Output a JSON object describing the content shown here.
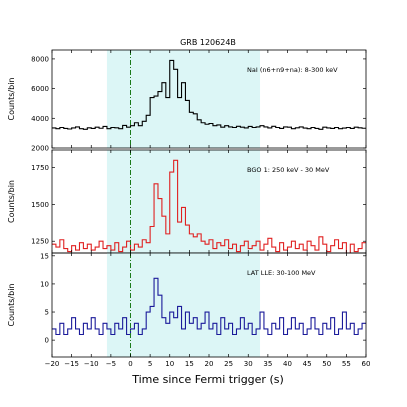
{
  "chart_data": {
    "type": "line",
    "title": "GRB 120624B",
    "xlabel": "Time since Fermi trigger (s)",
    "xlim": [
      -20,
      60
    ],
    "xticks": [
      -20,
      -15,
      -10,
      -5,
      0,
      5,
      10,
      15,
      20,
      25,
      30,
      35,
      40,
      45,
      50,
      55,
      60
    ],
    "xtick_labels": [
      "−20",
      "−15",
      "−10",
      "−5",
      "0",
      "5",
      "10",
      "15",
      "20",
      "25",
      "30",
      "35",
      "40",
      "45",
      "50",
      "55",
      "60"
    ],
    "shaded_interval": [
      -6,
      33
    ],
    "shade_color": "#dcf6f6",
    "trigger_line": {
      "x": 0,
      "color": "#1a7a1a",
      "style": "dash-dot"
    },
    "grid": false,
    "panels": [
      {
        "annotation": "NaI (n6+n9+na): 8-300 keV",
        "ylabel": "Counts/bin",
        "ylim": [
          2000,
          8600
        ],
        "yticks": [
          2000,
          4000,
          6000,
          8000
        ],
        "color": "#000000",
        "series": {
          "x": [
            -20,
            -19,
            -18,
            -17,
            -16,
            -15,
            -14,
            -13,
            -12,
            -11,
            -10,
            -9,
            -8,
            -7,
            -6,
            -5,
            -4,
            -3,
            -2,
            -1,
            0,
            1,
            2,
            3,
            4,
            5,
            6,
            7,
            8,
            9,
            10,
            11,
            12,
            13,
            14,
            15,
            16,
            17,
            18,
            19,
            20,
            21,
            22,
            23,
            24,
            25,
            26,
            27,
            28,
            29,
            30,
            31,
            32,
            33,
            34,
            35,
            36,
            37,
            38,
            39,
            40,
            41,
            42,
            43,
            44,
            45,
            46,
            47,
            48,
            49,
            50,
            51,
            52,
            53,
            54,
            55,
            56,
            57,
            58,
            59
          ],
          "values": [
            3350,
            3300,
            3380,
            3320,
            3280,
            3350,
            3420,
            3300,
            3260,
            3360,
            3320,
            3400,
            3330,
            3450,
            3300,
            3380,
            3360,
            3300,
            3520,
            3400,
            3500,
            3700,
            3500,
            3800,
            4200,
            5400,
            5500,
            5800,
            6400,
            5400,
            7900,
            7300,
            5400,
            6400,
            5200,
            4400,
            4300,
            3900,
            3700,
            3600,
            3650,
            3500,
            3550,
            3400,
            3500,
            3420,
            3380,
            3460,
            3400,
            3350,
            3450,
            3380,
            3420,
            3500,
            3420,
            3350,
            3460,
            3380,
            3320,
            3420,
            3400,
            3300,
            3360,
            3420,
            3340,
            3300,
            3380,
            3320,
            3260,
            3400,
            3350,
            3320,
            3380,
            3300,
            3340,
            3380,
            3320,
            3400,
            3360,
            3330
          ]
        }
      },
      {
        "annotation": "BGO 1: 250 keV - 30 MeV",
        "ylabel": "Counts/bin",
        "ylim": [
          1170,
          1870
        ],
        "yticks": [
          1250,
          1500,
          1750
        ],
        "color": "#e02020",
        "series": {
          "x": [
            -20,
            -19,
            -18,
            -17,
            -16,
            -15,
            -14,
            -13,
            -12,
            -11,
            -10,
            -9,
            -8,
            -7,
            -6,
            -5,
            -4,
            -3,
            -2,
            -1,
            0,
            1,
            2,
            3,
            4,
            5,
            6,
            7,
            8,
            9,
            10,
            11,
            12,
            13,
            14,
            15,
            16,
            17,
            18,
            19,
            20,
            21,
            22,
            23,
            24,
            25,
            26,
            27,
            28,
            29,
            30,
            31,
            32,
            33,
            34,
            35,
            36,
            37,
            38,
            39,
            40,
            41,
            42,
            43,
            44,
            45,
            46,
            47,
            48,
            49,
            50,
            51,
            52,
            53,
            54,
            55,
            56,
            57,
            58,
            59
          ],
          "values": [
            1230,
            1210,
            1260,
            1200,
            1180,
            1220,
            1190,
            1240,
            1200,
            1230,
            1190,
            1210,
            1250,
            1200,
            1220,
            1190,
            1240,
            1180,
            1210,
            1250,
            1190,
            1230,
            1210,
            1260,
            1240,
            1350,
            1640,
            1540,
            1420,
            1300,
            1720,
            1800,
            1380,
            1480,
            1360,
            1300,
            1280,
            1300,
            1250,
            1230,
            1260,
            1200,
            1240,
            1220,
            1260,
            1200,
            1230,
            1180,
            1220,
            1250,
            1200,
            1220,
            1250,
            1190,
            1230,
            1270,
            1210,
            1180,
            1240,
            1190,
            1210,
            1250,
            1200,
            1230,
            1190,
            1250,
            1220,
            1190,
            1280,
            1230,
            1180,
            1220,
            1260,
            1200,
            1240,
            1170,
            1230,
            1180,
            1200,
            1240
          ]
        }
      },
      {
        "annotation": "LAT LLE: 30-100 MeV",
        "ylabel": "Counts/bin",
        "ylim": [
          -3,
          15.5
        ],
        "yticks": [
          0,
          5,
          10,
          15
        ],
        "color": "#1a1a9a",
        "series": {
          "x": [
            -20,
            -19,
            -18,
            -17,
            -16,
            -15,
            -14,
            -13,
            -12,
            -11,
            -10,
            -9,
            -8,
            -7,
            -6,
            -5,
            -4,
            -3,
            -2,
            -1,
            0,
            1,
            2,
            3,
            4,
            5,
            6,
            7,
            8,
            9,
            10,
            11,
            12,
            13,
            14,
            15,
            16,
            17,
            18,
            19,
            20,
            21,
            22,
            23,
            24,
            25,
            26,
            27,
            28,
            29,
            30,
            31,
            32,
            33,
            34,
            35,
            36,
            37,
            38,
            39,
            40,
            41,
            42,
            43,
            44,
            45,
            46,
            47,
            48,
            49,
            50,
            51,
            52,
            53,
            54,
            55,
            56,
            57,
            58,
            59
          ],
          "values": [
            2,
            1,
            3,
            1,
            2,
            4,
            2,
            1,
            3,
            2,
            4,
            2,
            1,
            3,
            2,
            1,
            3,
            2,
            4,
            1,
            2,
            3,
            1,
            2,
            5,
            6,
            11,
            8,
            4,
            3,
            5,
            4,
            6,
            2,
            5,
            3,
            4,
            2,
            3,
            5,
            2,
            3,
            1,
            4,
            2,
            3,
            1,
            2,
            4,
            2,
            3,
            1,
            2,
            5,
            2,
            1,
            3,
            2,
            4,
            1,
            2,
            4,
            2,
            3,
            1,
            2,
            4,
            2,
            1,
            3,
            2,
            4,
            1,
            2,
            5,
            2,
            3,
            1,
            2,
            3
          ]
        }
      }
    ]
  }
}
